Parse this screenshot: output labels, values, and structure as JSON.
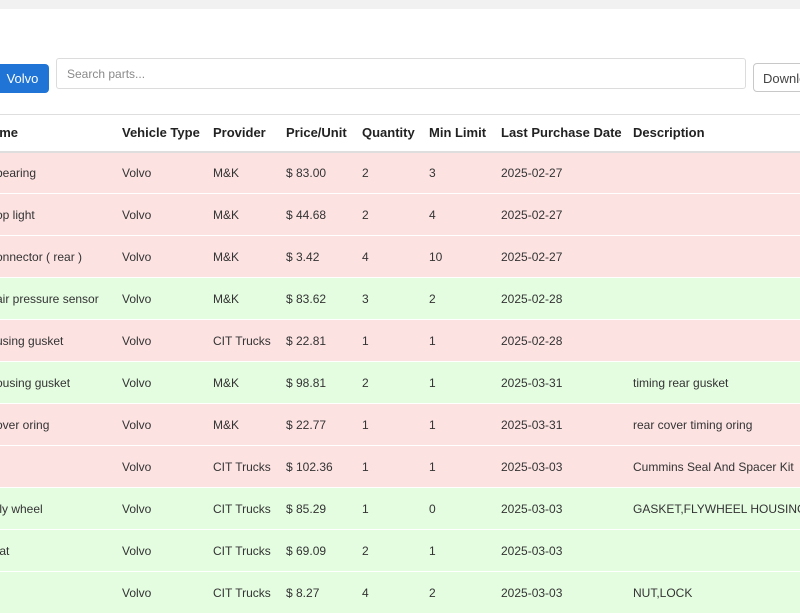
{
  "filter": {
    "label": "Volvo"
  },
  "search": {
    "placeholder": "Search parts..."
  },
  "download": {
    "label": "Downlo"
  },
  "table": {
    "headers": [
      "ame",
      "Vehicle Type",
      "Provider",
      "Price/Unit",
      "Quantity",
      "Min Limit",
      "Last Purchase Date",
      "Description"
    ],
    "rows": [
      {
        "status": "low",
        "cells": [
          "bearing",
          "Volvo",
          "M&K",
          "$ 83.00",
          "2",
          "3",
          "2025-02-27",
          ""
        ]
      },
      {
        "status": "low",
        "cells": [
          "op light",
          "Volvo",
          "M&K",
          "$ 44.68",
          "2",
          "4",
          "2025-02-27",
          ""
        ]
      },
      {
        "status": "low",
        "cells": [
          "onnector ( rear )",
          "Volvo",
          "M&K",
          "$ 3.42",
          "4",
          "10",
          "2025-02-27",
          ""
        ]
      },
      {
        "status": "ok",
        "cells": [
          "air pressure sensor",
          "Volvo",
          "M&K",
          "$ 83.62",
          "3",
          "2",
          "2025-02-28",
          ""
        ]
      },
      {
        "status": "low",
        "cells": [
          "using gusket",
          "Volvo",
          "CIT Trucks",
          "$ 22.81",
          "1",
          "1",
          "2025-02-28",
          ""
        ]
      },
      {
        "status": "ok",
        "cells": [
          "ousing gusket",
          "Volvo",
          "M&K",
          "$ 98.81",
          "2",
          "1",
          "2025-03-31",
          "timing rear gusket"
        ]
      },
      {
        "status": "low",
        "cells": [
          "over oring",
          "Volvo",
          "M&K",
          "$ 22.77",
          "1",
          "1",
          "2025-03-31",
          "rear cover timing oring"
        ]
      },
      {
        "status": "low",
        "cells": [
          "",
          "Volvo",
          "CIT Trucks",
          "$ 102.36",
          "1",
          "1",
          "2025-03-03",
          "Cummins Seal And Spacer Kit"
        ]
      },
      {
        "status": "ok",
        "cells": [
          "fly wheel",
          "Volvo",
          "CIT Trucks",
          "$ 85.29",
          "1",
          "0",
          "2025-03-03",
          "GASKET,FLYWHEEL HOUSING"
        ]
      },
      {
        "status": "ok",
        "cells": [
          "tat",
          "Volvo",
          "CIT Trucks",
          "$ 69.09",
          "2",
          "1",
          "2025-03-03",
          ""
        ]
      },
      {
        "status": "ok",
        "cells": [
          "",
          "Volvo",
          "CIT Trucks",
          "$ 8.27",
          "4",
          "2",
          "2025-03-03",
          "NUT,LOCK"
        ]
      }
    ]
  }
}
